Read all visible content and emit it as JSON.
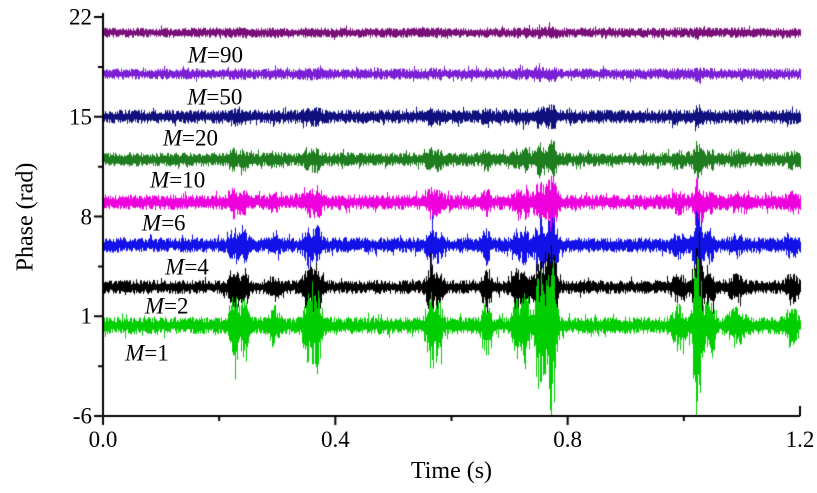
{
  "figure": {
    "title": "",
    "xlabel": "Time (s)",
    "ylabel": "Phase (rad)"
  },
  "chart_data": {
    "type": "line",
    "title": "",
    "xlabel": "Time (s)",
    "ylabel": "Phase (rad)",
    "xlim": [
      0,
      1.2
    ],
    "ylim": [
      -6,
      22
    ],
    "x_ticks": [
      0.0,
      0.4,
      0.8,
      1.2
    ],
    "x_tick_labels": [
      "0.0",
      "0.4",
      "0.8",
      "1.2"
    ],
    "x_minor_ticks": [
      0.2,
      0.6,
      1.0
    ],
    "y_ticks": [
      22,
      15,
      8,
      1,
      -6
    ],
    "y_tick_labels": [
      "22",
      "15",
      "8",
      "1",
      "-6"
    ],
    "y_minor_ticks": [
      18.5,
      11.5,
      4.5,
      -2.5
    ],
    "grid": false,
    "legend": "inline text labels below each trace",
    "description": "Eight noisy phase-versus-time traces, vertically offset, for increasing averaging number M. Transient burst events near t = 0.22-0.25, 0.29, 0.35-0.37, 0.56, 0.66, 0.71-0.78 and 1.02-1.05 s are strongest for M=1 (reaching about -6 rad at t = 0.77 and 1.02 s) and are progressively suppressed as M increases; M=50 and M=90 show nearly uniform low-level noise.",
    "series": [
      {
        "label": "M=1",
        "color": "#00ce00",
        "baseline_rad": 0.35,
        "noise_amp_rad": 0.62,
        "burst_scale": 1.0,
        "label_t": 0.038,
        "label_rad": -1.55
      },
      {
        "label": "M=2",
        "color": "#000000",
        "baseline_rad": 3.05,
        "noise_amp_rad": 0.5,
        "burst_scale": 0.62,
        "label_t": 0.072,
        "label_rad": 1.7
      },
      {
        "label": "M=4",
        "color": "#1212e8",
        "baseline_rad": 6.0,
        "noise_amp_rad": 0.55,
        "burst_scale": 0.42,
        "label_t": 0.107,
        "label_rad": 4.45
      },
      {
        "label": "M=6",
        "color": "#ee00dd",
        "baseline_rad": 9.0,
        "noise_amp_rad": 0.55,
        "burst_scale": 0.3,
        "label_t": 0.067,
        "label_rad": 7.55
      },
      {
        "label": "M=10",
        "color": "#1e7d1e",
        "baseline_rad": 12.0,
        "noise_amp_rad": 0.5,
        "burst_scale": 0.2,
        "label_t": 0.081,
        "label_rad": 10.55
      },
      {
        "label": "M=20",
        "color": "#10107e",
        "baseline_rad": 15.0,
        "noise_amp_rad": 0.5,
        "burst_scale": 0.09,
        "label_t": 0.103,
        "label_rad": 13.5
      },
      {
        "label": "M=50",
        "color": "#7b1fd6",
        "baseline_rad": 18.0,
        "noise_amp_rad": 0.4,
        "burst_scale": 0.035,
        "label_t": 0.145,
        "label_rad": 16.4
      },
      {
        "label": "M=90",
        "color": "#7a0f7a",
        "baseline_rad": 20.9,
        "noise_amp_rad": 0.36,
        "burst_scale": 0.03,
        "label_t": 0.146,
        "label_rad": 19.3
      }
    ],
    "burst_events": [
      {
        "t": 0.225,
        "amp_rad": 2.0,
        "sigma_s": 0.006
      },
      {
        "t": 0.243,
        "amp_rad": 1.5,
        "sigma_s": 0.005
      },
      {
        "t": 0.295,
        "amp_rad": 0.9,
        "sigma_s": 0.006
      },
      {
        "t": 0.352,
        "amp_rad": 1.7,
        "sigma_s": 0.006
      },
      {
        "t": 0.368,
        "amp_rad": 2.1,
        "sigma_s": 0.006
      },
      {
        "t": 0.565,
        "amp_rad": 2.0,
        "sigma_s": 0.006
      },
      {
        "t": 0.578,
        "amp_rad": 1.2,
        "sigma_s": 0.005
      },
      {
        "t": 0.659,
        "amp_rad": 1.8,
        "sigma_s": 0.005
      },
      {
        "t": 0.712,
        "amp_rad": 1.5,
        "sigma_s": 0.006
      },
      {
        "t": 0.727,
        "amp_rad": 1.9,
        "sigma_s": 0.005
      },
      {
        "t": 0.752,
        "amp_rad": 3.5,
        "sigma_s": 0.007
      },
      {
        "t": 0.772,
        "amp_rad": 5.2,
        "sigma_s": 0.006
      },
      {
        "t": 0.99,
        "amp_rad": 1.0,
        "sigma_s": 0.008
      },
      {
        "t": 1.024,
        "amp_rad": 4.6,
        "sigma_s": 0.006
      },
      {
        "t": 1.045,
        "amp_rad": 1.6,
        "sigma_s": 0.005
      },
      {
        "t": 1.09,
        "amp_rad": 0.8,
        "sigma_s": 0.01
      },
      {
        "t": 1.185,
        "amp_rad": 1.0,
        "sigma_s": 0.007
      }
    ]
  }
}
